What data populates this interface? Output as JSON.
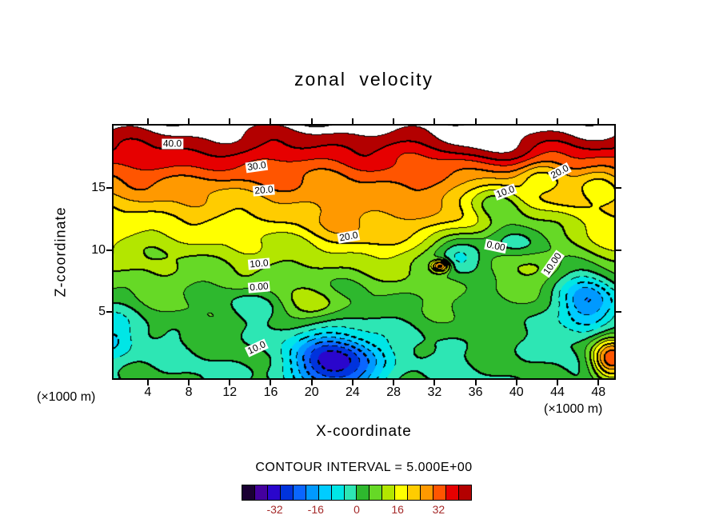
{
  "title": "zonal velocity",
  "axes": {
    "x_label": "X-coordinate",
    "z_label": "Z-coordinate",
    "x_unit_left": "(×1000 m)",
    "x_unit_right": "(×1000 m)",
    "x_ticks": [
      4,
      8,
      12,
      16,
      20,
      24,
      28,
      32,
      36,
      40,
      44,
      48
    ],
    "z_ticks": [
      5,
      10,
      15
    ]
  },
  "footer": {
    "contour_interval_text": "CONTOUR INTERVAL = 5.000E+00"
  },
  "colorbar": {
    "min": -45,
    "max": 45,
    "tick_values": [
      -32,
      -16,
      0,
      16,
      32
    ],
    "tick_labels": [
      "-32",
      "-16",
      "0",
      "16",
      "32"
    ],
    "label_color": "#a52a2a",
    "colors": [
      "#1a0033",
      "#44009e",
      "#2a06cc",
      "#0033dd",
      "#0a66ff",
      "#0099ff",
      "#00ccff",
      "#00e6e6",
      "#2de6b4",
      "#2eb82e",
      "#66d926",
      "#b3e600",
      "#ffff00",
      "#ffcc00",
      "#ff9900",
      "#ff5500",
      "#e60000",
      "#b30000"
    ]
  },
  "chart_data": {
    "type": "heatmap",
    "title": "zonal velocity",
    "xlabel": "X-coordinate (×1000 m)",
    "ylabel": "Z-coordinate (×1000 m)",
    "x_range": [
      0.5,
      49.7
    ],
    "z_range": [
      -0.5,
      20.2
    ],
    "contour_interval": 5,
    "contour_levels": [
      -40,
      -35,
      -30,
      -25,
      -20,
      -15,
      -10,
      -5,
      0,
      5,
      10,
      15,
      20,
      25,
      30,
      35,
      40,
      45
    ],
    "negative_contours_dashed": true,
    "value_range_colored": [
      -45,
      45
    ],
    "values_above_max_fill": "white",
    "contour_labels": [
      {
        "text": "40.0",
        "x": 6.4,
        "z": 18.6,
        "rot": 0
      },
      {
        "text": "30.0",
        "x": 14.6,
        "z": 16.8,
        "rot": -8
      },
      {
        "text": "20.0",
        "x": 15.3,
        "z": 14.8,
        "rot": -5
      },
      {
        "text": "20.0",
        "x": 23.6,
        "z": 11.1,
        "rot": -10
      },
      {
        "text": "10.0",
        "x": 14.9,
        "z": 8.9,
        "rot": -5
      },
      {
        "text": "0.00",
        "x": 14.9,
        "z": 7.0,
        "rot": -5
      },
      {
        "text": "10.0",
        "x": 14.6,
        "z": 2.1,
        "rot": -25
      },
      {
        "text": "20.0",
        "x": 44.2,
        "z": 16.3,
        "rot": -28
      },
      {
        "text": "10.0",
        "x": 38.9,
        "z": 14.7,
        "rot": -20
      },
      {
        "text": "0.00",
        "x": 38.0,
        "z": 10.3,
        "rot": 12
      },
      {
        "text": "10.00",
        "x": 43.5,
        "z": 8.9,
        "rot": -55
      }
    ],
    "field_model": {
      "base": {
        "scale": 45,
        "zref": 19.5,
        "power": 1.9
      },
      "waves": [
        {
          "ax": 0.5,
          "az": 0.8,
          "amp": 1.6
        },
        {
          "ax": 0.9,
          "az": -0.5,
          "amp": 1.2
        },
        {
          "ax": 0.33,
          "az": 2.2,
          "amp": 0.9
        }
      ],
      "bumps": [
        {
          "name": "deep-min-bottom-center",
          "x": 22.5,
          "z": 1.0,
          "sx": 4.2,
          "sz": 2.4,
          "a": -34
        },
        {
          "name": "min-right",
          "x": 46.8,
          "z": 5.8,
          "sx": 2.8,
          "sz": 2.4,
          "a": -26
        },
        {
          "name": "closed-low-mid",
          "x": 34.6,
          "z": 9.7,
          "sx": 2.5,
          "sz": 1.6,
          "a": -19
        },
        {
          "name": "small-max-spot",
          "x": 32.6,
          "z": 8.7,
          "sx": 0.9,
          "sz": 0.5,
          "a": 30
        },
        {
          "name": "max-bottom-right",
          "x": 49.2,
          "z": 1.2,
          "sx": 2.0,
          "sz": 1.7,
          "a": 34
        },
        {
          "name": "min-bottom-left",
          "x": 0.5,
          "z": 2.8,
          "sx": 2.6,
          "sz": 2.2,
          "a": -12
        },
        {
          "name": "yellow-blob",
          "x": 20.5,
          "z": 5.4,
          "sx": 2.8,
          "sz": 1.2,
          "a": 8
        },
        {
          "name": "central-warm-tongue",
          "x": 26,
          "z": 12,
          "sx": 6.5,
          "sz": 2.6,
          "a": 8
        },
        {
          "name": "zero-dip-left",
          "x": 14,
          "z": 5.6,
          "sx": 2.4,
          "sz": 1.2,
          "a": -6
        },
        {
          "name": "top-left-bulge",
          "x": 8,
          "z": 17.5,
          "sx": 3.5,
          "sz": 1.4,
          "a": 4
        },
        {
          "name": "top-white-patch",
          "x": 38,
          "z": 18.5,
          "sx": 4.0,
          "sz": 1.2,
          "a": 6
        },
        {
          "name": "right-diagonal-trough",
          "x": 40,
          "z": 10.8,
          "sx": 3.5,
          "sz": 1.6,
          "a": -14
        },
        {
          "name": "right-green-band",
          "x": 44,
          "z": 12.5,
          "sx": 2.5,
          "sz": 1.8,
          "a": -8
        },
        {
          "name": "upper-right-dip",
          "x": 48,
          "z": 15.5,
          "sx": 2.5,
          "sz": 1.5,
          "a": -8
        },
        {
          "name": "upper-channel-a",
          "x": 38,
          "z": 14,
          "sx": 2.6,
          "sz": 1.8,
          "a": -16
        },
        {
          "name": "upper-channel-b",
          "x": 42.5,
          "z": 15.8,
          "sx": 2.4,
          "sz": 1.4,
          "a": -12
        }
      ]
    }
  }
}
